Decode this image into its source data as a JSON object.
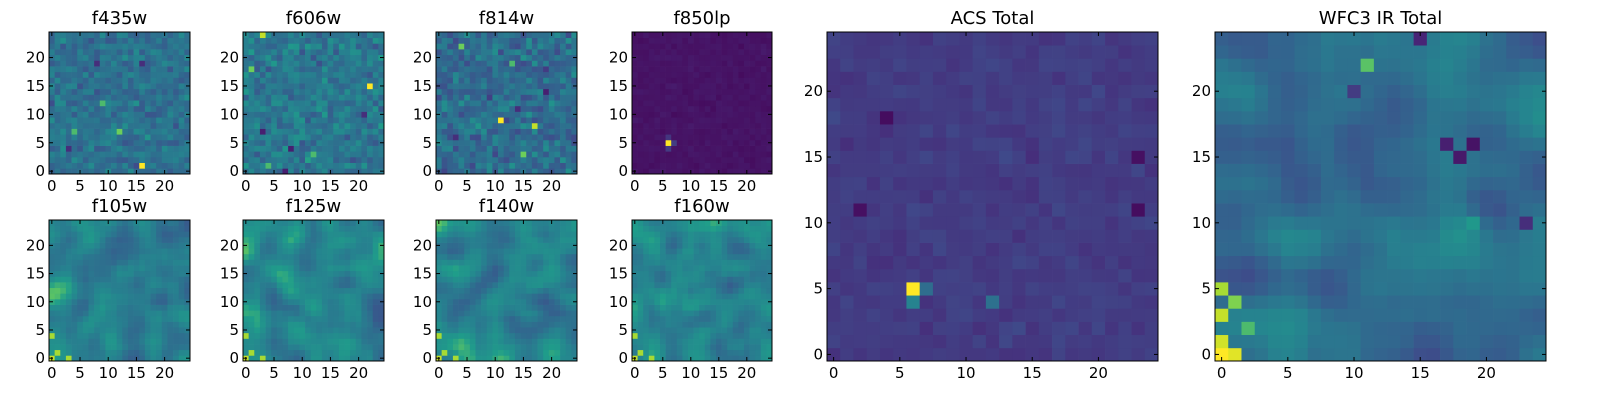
{
  "figure": {
    "colormap_stops": [
      "#440154",
      "#482777",
      "#3f4a8a",
      "#31678e",
      "#26838f",
      "#1f9d8a",
      "#6cce5a",
      "#b6de2b",
      "#fee825"
    ]
  },
  "chart_data": [
    {
      "type": "heatmap",
      "title": "f435w",
      "grid": [
        25,
        25
      ],
      "xticks": [
        0,
        5,
        10,
        15,
        20
      ],
      "yticks": [
        0,
        5,
        10,
        15,
        20
      ],
      "xlim": [
        -0.5,
        24.5
      ],
      "ylim": [
        -0.5,
        24.5
      ],
      "colormap": "viridis",
      "seed": 11,
      "texture": "noise",
      "base": 0.42,
      "spread": 0.16,
      "hotspots": [
        [
          16,
          1,
          1.0
        ],
        [
          12,
          7,
          0.75
        ],
        [
          4,
          7,
          0.7
        ],
        [
          9,
          12,
          0.7
        ]
      ],
      "cold": [
        [
          3,
          4,
          0.15
        ],
        [
          16,
          19,
          0.15
        ],
        [
          8,
          19,
          0.15
        ]
      ]
    },
    {
      "type": "heatmap",
      "title": "f606w",
      "grid": [
        25,
        25
      ],
      "xticks": [
        0,
        5,
        10,
        15,
        20
      ],
      "yticks": [
        0,
        5,
        10,
        15,
        20
      ],
      "xlim": [
        -0.5,
        24.5
      ],
      "ylim": [
        -0.5,
        24.5
      ],
      "colormap": "viridis",
      "seed": 23,
      "texture": "noise",
      "base": 0.45,
      "spread": 0.18,
      "hotspots": [
        [
          22,
          15,
          1.0
        ],
        [
          3,
          24,
          0.9
        ],
        [
          1,
          18,
          0.75
        ],
        [
          4,
          1,
          0.7
        ],
        [
          12,
          3,
          0.7
        ]
      ],
      "cold": [
        [
          3,
          7,
          0.1
        ],
        [
          8,
          4,
          0.1
        ],
        [
          21,
          10,
          0.15
        ],
        [
          7,
          0,
          0.1
        ]
      ]
    },
    {
      "type": "heatmap",
      "title": "f814w",
      "grid": [
        25,
        25
      ],
      "xticks": [
        0,
        5,
        10,
        15,
        20
      ],
      "yticks": [
        0,
        5,
        10,
        15,
        20
      ],
      "xlim": [
        -0.5,
        24.5
      ],
      "ylim": [
        -0.5,
        24.5
      ],
      "colormap": "viridis",
      "seed": 37,
      "texture": "noise",
      "base": 0.4,
      "spread": 0.2,
      "hotspots": [
        [
          11,
          9,
          1.0
        ],
        [
          17,
          8,
          0.9
        ],
        [
          15,
          3,
          0.75
        ],
        [
          4,
          22,
          0.75
        ],
        [
          13,
          19,
          0.7
        ]
      ],
      "cold": [
        [
          19,
          14,
          0.1
        ],
        [
          14,
          11,
          0.15
        ],
        [
          3,
          6,
          0.15
        ]
      ]
    },
    {
      "type": "heatmap",
      "title": "f850lp",
      "grid": [
        25,
        25
      ],
      "xticks": [
        0,
        5,
        10,
        15,
        20
      ],
      "yticks": [
        0,
        5,
        10,
        15,
        20
      ],
      "xlim": [
        -0.5,
        24.5
      ],
      "ylim": [
        -0.5,
        24.5
      ],
      "colormap": "viridis",
      "seed": 41,
      "texture": "noise",
      "base": 0.06,
      "spread": 0.025,
      "hotspots": [
        [
          6,
          5,
          1.0
        ],
        [
          7,
          5,
          0.2
        ],
        [
          6,
          4,
          0.2
        ],
        [
          6,
          6,
          0.18
        ]
      ],
      "cold": []
    },
    {
      "type": "heatmap",
      "title": "ACS Total",
      "grid": [
        25,
        25
      ],
      "xticks": [
        0,
        5,
        10,
        15,
        20
      ],
      "yticks": [
        0,
        5,
        10,
        15,
        20
      ],
      "xlim": [
        -0.5,
        24.5
      ],
      "ylim": [
        -0.5,
        24.5
      ],
      "colormap": "viridis",
      "seed": 53,
      "texture": "noise",
      "base": 0.2,
      "spread": 0.05,
      "hotspots": [
        [
          6,
          5,
          1.0
        ],
        [
          6,
          4,
          0.5
        ],
        [
          7,
          5,
          0.4
        ],
        [
          12,
          4,
          0.42
        ]
      ],
      "cold": [
        [
          4,
          18,
          0.04
        ],
        [
          2,
          11,
          0.05
        ],
        [
          23,
          11,
          0.04
        ],
        [
          23,
          15,
          0.05
        ]
      ]
    },
    {
      "type": "heatmap",
      "title": "WFC3 IR Total",
      "grid": [
        25,
        25
      ],
      "xticks": [
        0,
        5,
        10,
        15,
        20
      ],
      "yticks": [
        0,
        5,
        10,
        15,
        20
      ],
      "xlim": [
        -0.5,
        24.5
      ],
      "ylim": [
        -0.5,
        24.5
      ],
      "colormap": "viridis",
      "seed": 67,
      "texture": "smooth",
      "base": 0.42,
      "spread": 0.18,
      "hotspots": [
        [
          0,
          0,
          1.0
        ],
        [
          1,
          0,
          0.95
        ],
        [
          0,
          1,
          0.92
        ],
        [
          0,
          3,
          0.9
        ],
        [
          0,
          5,
          0.85
        ],
        [
          1,
          4,
          0.78
        ],
        [
          2,
          2,
          0.7
        ],
        [
          11,
          22,
          0.72
        ],
        [
          19,
          10,
          0.6
        ]
      ],
      "cold": [
        [
          19,
          16,
          0.06
        ],
        [
          18,
          15,
          0.08
        ],
        [
          17,
          16,
          0.1
        ],
        [
          23,
          10,
          0.15
        ],
        [
          15,
          24,
          0.12
        ],
        [
          10,
          20,
          0.2
        ]
      ]
    }
  ]
}
